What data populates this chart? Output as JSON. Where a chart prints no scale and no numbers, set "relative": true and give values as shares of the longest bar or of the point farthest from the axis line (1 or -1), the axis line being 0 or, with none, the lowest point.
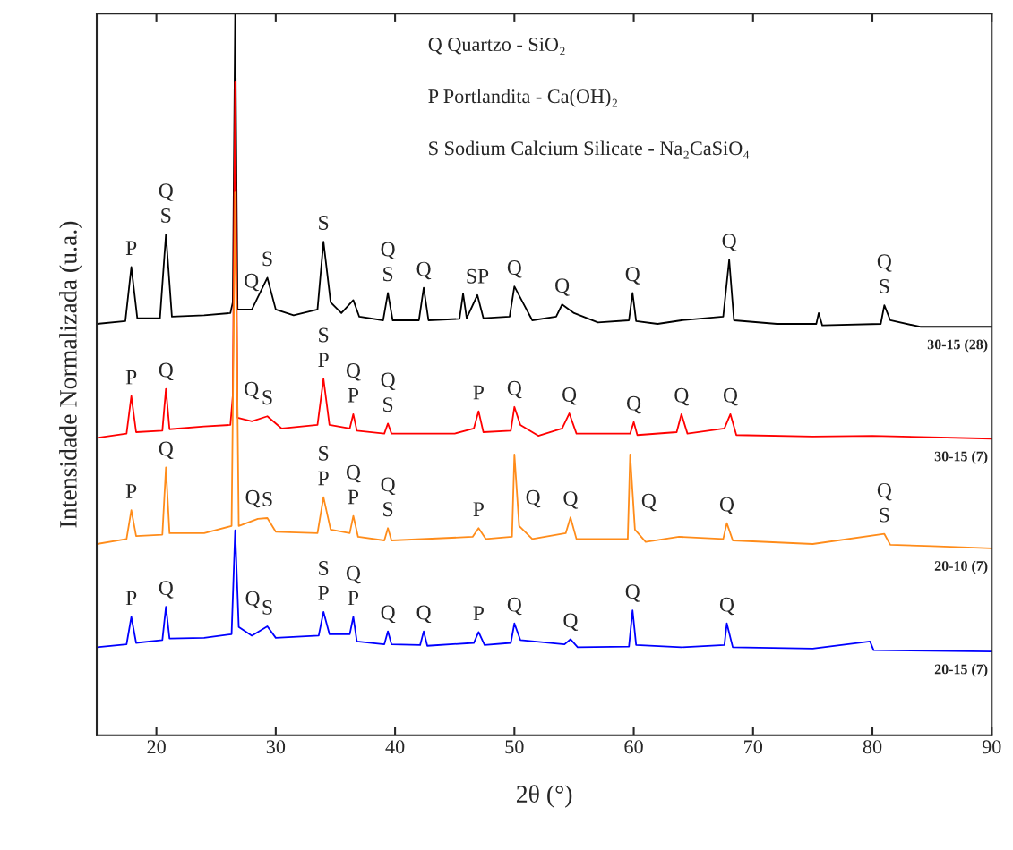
{
  "chart_data": {
    "type": "line",
    "relative": true,
    "xlabel": "2θ (°)",
    "ylabel": "Intensidade Normalizada (u.a.)",
    "xlim": [
      15,
      90
    ],
    "xticks": [
      20,
      30,
      40,
      50,
      60,
      70,
      80,
      90
    ],
    "legend": false,
    "grid": false,
    "marker": "none",
    "line_style": "solid",
    "series": [
      {
        "name": "30-15 (28)",
        "color": "#000000",
        "x": [
          15,
          17.4,
          17.9,
          18.4,
          20.3,
          20.8,
          21.3,
          24,
          26.2,
          26.4,
          26.6,
          26.8,
          28,
          29.3,
          30,
          31.5,
          33.5,
          34.0,
          34.6,
          35.5,
          36.5,
          37,
          39.0,
          39.4,
          39.8,
          42,
          42.4,
          42.8,
          45.4,
          45.7,
          46.0,
          46.9,
          47.4,
          49.6,
          50.0,
          50.7,
          51.5,
          53.5,
          54.0,
          55,
          57,
          59.6,
          59.9,
          60.2,
          62,
          64,
          67.5,
          68.0,
          68.4,
          72,
          75.3,
          75.5,
          75.8,
          80.7,
          81.0,
          81.5,
          84,
          90
        ],
        "values": [
          0.57,
          0.574,
          0.649,
          0.578,
          0.578,
          0.694,
          0.58,
          0.582,
          0.585,
          0.6,
          1.0,
          0.59,
          0.59,
          0.634,
          0.59,
          0.582,
          0.59,
          0.684,
          0.6,
          0.585,
          0.603,
          0.58,
          0.575,
          0.613,
          0.575,
          0.575,
          0.62,
          0.575,
          0.577,
          0.612,
          0.578,
          0.61,
          0.578,
          0.58,
          0.622,
          0.6,
          0.575,
          0.58,
          0.597,
          0.585,
          0.572,
          0.575,
          0.613,
          0.574,
          0.57,
          0.575,
          0.58,
          0.659,
          0.575,
          0.57,
          0.57,
          0.585,
          0.568,
          0.57,
          0.596,
          0.575,
          0.566,
          0.566
        ]
      },
      {
        "name": "30-15 (7)",
        "color": "#ff0000",
        "x": [
          15,
          17.5,
          17.9,
          18.3,
          20.5,
          20.8,
          21.1,
          24,
          26.2,
          26.4,
          26.6,
          26.8,
          28,
          29.3,
          30.5,
          33.5,
          34.0,
          34.5,
          36.2,
          36.5,
          36.8,
          39.1,
          39.4,
          39.7,
          45,
          46.6,
          47.0,
          47.4,
          49.7,
          50.0,
          50.5,
          52,
          54,
          54.6,
          55.2,
          59.7,
          60.0,
          60.3,
          63.6,
          64.0,
          64.5,
          67.6,
          68.1,
          68.6,
          75,
          80,
          90
        ],
        "values": [
          0.412,
          0.418,
          0.47,
          0.42,
          0.422,
          0.48,
          0.424,
          0.428,
          0.43,
          0.47,
          0.905,
          0.44,
          0.435,
          0.442,
          0.425,
          0.43,
          0.494,
          0.43,
          0.425,
          0.445,
          0.422,
          0.418,
          0.432,
          0.418,
          0.418,
          0.425,
          0.449,
          0.42,
          0.422,
          0.455,
          0.43,
          0.415,
          0.425,
          0.446,
          0.418,
          0.418,
          0.434,
          0.416,
          0.42,
          0.445,
          0.418,
          0.425,
          0.445,
          0.416,
          0.414,
          0.415,
          0.411
        ]
      },
      {
        "name": "20-10 (7)",
        "color": "#ff8c1a",
        "x": [
          15,
          17.5,
          17.9,
          18.3,
          20.5,
          20.8,
          21.1,
          24,
          26.3,
          26.6,
          26.9,
          28.5,
          29.3,
          30,
          33.5,
          34.0,
          34.6,
          36.2,
          36.5,
          36.9,
          39.1,
          39.4,
          39.7,
          46.5,
          47.0,
          47.6,
          49.8,
          50.0,
          50.4,
          51.5,
          54.3,
          54.7,
          55.2,
          59.5,
          59.7,
          60.1,
          61,
          63.8,
          67.5,
          67.8,
          68.3,
          75,
          81.0,
          81.5,
          85,
          90
        ],
        "values": [
          0.265,
          0.272,
          0.312,
          0.276,
          0.278,
          0.371,
          0.28,
          0.28,
          0.29,
          0.752,
          0.29,
          0.3,
          0.301,
          0.282,
          0.28,
          0.33,
          0.285,
          0.28,
          0.304,
          0.275,
          0.27,
          0.287,
          0.27,
          0.275,
          0.287,
          0.272,
          0.275,
          0.389,
          0.29,
          0.272,
          0.28,
          0.302,
          0.272,
          0.272,
          0.389,
          0.285,
          0.268,
          0.275,
          0.272,
          0.294,
          0.27,
          0.265,
          0.279,
          0.264,
          0.262,
          0.259
        ]
      },
      {
        "name": "20-15 (7)",
        "color": "#0000ff",
        "x": [
          15,
          17.5,
          17.9,
          18.3,
          20.5,
          20.8,
          21.1,
          24,
          26.3,
          26.6,
          26.9,
          28,
          29.3,
          30,
          33.6,
          34.0,
          34.5,
          36.2,
          36.5,
          36.8,
          39.1,
          39.4,
          39.7,
          42.1,
          42.4,
          42.7,
          46.6,
          47.0,
          47.5,
          49.7,
          50.0,
          50.5,
          54.2,
          54.7,
          55.3,
          59.6,
          59.9,
          60.2,
          64,
          67.6,
          67.8,
          68.3,
          75,
          79.8,
          80.1,
          90
        ],
        "values": [
          0.122,
          0.126,
          0.164,
          0.128,
          0.132,
          0.178,
          0.134,
          0.135,
          0.14,
          0.284,
          0.15,
          0.138,
          0.151,
          0.135,
          0.138,
          0.171,
          0.14,
          0.14,
          0.164,
          0.13,
          0.126,
          0.144,
          0.126,
          0.125,
          0.144,
          0.124,
          0.128,
          0.143,
          0.125,
          0.128,
          0.155,
          0.132,
          0.126,
          0.133,
          0.122,
          0.123,
          0.173,
          0.125,
          0.122,
          0.125,
          0.155,
          0.122,
          0.12,
          0.13,
          0.118,
          0.116
        ]
      }
    ],
    "annotations": [
      "Q Quartzo - SiO₂",
      "P Portlandita - Ca(OH)₂",
      "S Sodium Calcium Silicate - Na₂CaSiO₄",
      {
        "text": "P",
        "x": 17.9,
        "y": 0.649
      },
      {
        "text": "S",
        "x": 20.8,
        "y": 0.694
      },
      {
        "text": "Q",
        "x": 20.8,
        "y": 0.694
      },
      {
        "text": "Q",
        "x": 26.8,
        "y": 0.59
      },
      {
        "text": "S",
        "x": 29.3,
        "y": 0.634
      },
      {
        "text": "S",
        "x": 34.0,
        "y": 0.684
      },
      {
        "text": "S",
        "x": 39.4,
        "y": 0.613
      },
      {
        "text": "Q",
        "x": 39.4,
        "y": 0.613
      },
      {
        "text": "Q",
        "x": 42.4,
        "y": 0.62
      },
      {
        "text": "SP",
        "x": 46.9,
        "y": 0.61
      },
      {
        "text": "Q",
        "x": 50.0,
        "y": 0.622
      },
      {
        "text": "Q",
        "x": 54.0,
        "y": 0.597
      },
      {
        "text": "Q",
        "x": 59.9,
        "y": 0.613
      },
      {
        "text": "Q",
        "x": 68.0,
        "y": 0.659
      },
      {
        "text": "S",
        "x": 81.0,
        "y": 0.596
      },
      {
        "text": "Q",
        "x": 81.0,
        "y": 0.596
      },
      {
        "text": "P",
        "x": 17.9,
        "y": 0.47
      },
      {
        "text": "Q",
        "x": 20.8,
        "y": 0.48
      },
      {
        "text": "Q",
        "x": 26.8,
        "y": 0.44
      },
      {
        "text": "S",
        "x": 29.3,
        "y": 0.442
      },
      {
        "text": "P",
        "x": 34.0,
        "y": 0.494
      },
      {
        "text": "S",
        "x": 34.0,
        "y": 0.494
      },
      {
        "text": "P",
        "x": 36.5,
        "y": 0.445
      },
      {
        "text": "Q",
        "x": 36.5,
        "y": 0.445
      },
      {
        "text": "S",
        "x": 39.4,
        "y": 0.432
      },
      {
        "text": "Q",
        "x": 39.4,
        "y": 0.432
      },
      {
        "text": "P",
        "x": 47.0,
        "y": 0.449
      },
      {
        "text": "Q",
        "x": 50.0,
        "y": 0.455
      },
      {
        "text": "Q",
        "x": 54.6,
        "y": 0.446
      },
      {
        "text": "Q",
        "x": 60.0,
        "y": 0.434
      },
      {
        "text": "Q",
        "x": 64.0,
        "y": 0.445
      },
      {
        "text": "Q",
        "x": 68.1,
        "y": 0.445
      },
      {
        "text": "P",
        "x": 17.9,
        "y": 0.312
      },
      {
        "text": "Q",
        "x": 20.8,
        "y": 0.371
      },
      {
        "text": "Q",
        "x": 26.9,
        "y": 0.29
      },
      {
        "text": "S",
        "x": 29.3,
        "y": 0.301
      },
      {
        "text": "P",
        "x": 34.0,
        "y": 0.33
      },
      {
        "text": "S",
        "x": 34.0,
        "y": 0.33
      },
      {
        "text": "P",
        "x": 36.5,
        "y": 0.304
      },
      {
        "text": "Q",
        "x": 36.5,
        "y": 0.304
      },
      {
        "text": "S",
        "x": 39.4,
        "y": 0.287
      },
      {
        "text": "Q",
        "x": 39.4,
        "y": 0.287
      },
      {
        "text": "P",
        "x": 47.0,
        "y": 0.287
      },
      {
        "text": "Q",
        "x": 50.4,
        "y": 0.29
      },
      {
        "text": "Q",
        "x": 54.7,
        "y": 0.302
      },
      {
        "text": "Q",
        "x": 60.1,
        "y": 0.285
      },
      {
        "text": "Q",
        "x": 67.8,
        "y": 0.294
      },
      {
        "text": "S",
        "x": 81.0,
        "y": 0.279
      },
      {
        "text": "Q",
        "x": 81.0,
        "y": 0.279
      },
      {
        "text": "P",
        "x": 17.9,
        "y": 0.164
      },
      {
        "text": "Q",
        "x": 20.8,
        "y": 0.178
      },
      {
        "text": "Q",
        "x": 26.9,
        "y": 0.15
      },
      {
        "text": "S",
        "x": 29.3,
        "y": 0.151
      },
      {
        "text": "P",
        "x": 34.0,
        "y": 0.171
      },
      {
        "text": "S",
        "x": 34.0,
        "y": 0.171
      },
      {
        "text": "P",
        "x": 36.5,
        "y": 0.164
      },
      {
        "text": "Q",
        "x": 36.5,
        "y": 0.164
      },
      {
        "text": "Q",
        "x": 39.4,
        "y": 0.144
      },
      {
        "text": "Q",
        "x": 42.4,
        "y": 0.144
      },
      {
        "text": "P",
        "x": 47.0,
        "y": 0.143
      },
      {
        "text": "Q",
        "x": 50.0,
        "y": 0.155
      },
      {
        "text": "Q",
        "x": 54.7,
        "y": 0.133
      },
      {
        "text": "Q",
        "x": 59.9,
        "y": 0.173
      },
      {
        "text": "Q",
        "x": 67.8,
        "y": 0.155
      }
    ]
  }
}
